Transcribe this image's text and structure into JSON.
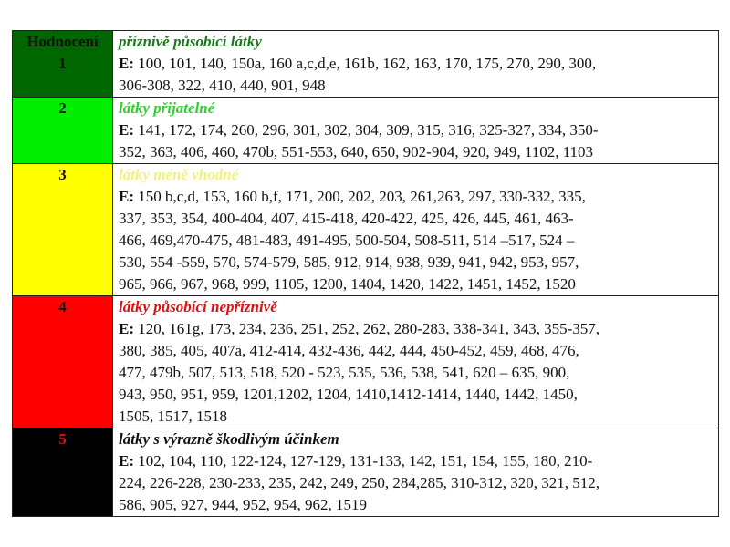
{
  "header_label": "Hodnocení",
  "e_prefix": "E:",
  "rows": [
    {
      "rank": "1",
      "title": "příznivě působící látky",
      "rank_bg": "#006600",
      "rank_color": "#111111",
      "title_color": "#1a7a1a",
      "lines": [
        " 100, 101, 140, 150a, 160 a,c,d,e, 161b, 162, 163, 170, 175, 270, 290, 300,",
        "306-308, 322, 410, 440, 901, 948"
      ]
    },
    {
      "rank": "2",
      "title": "látky přijatelné",
      "rank_bg": "#00ee00",
      "rank_color": "#111111",
      "title_color": "#33cc33",
      "lines": [
        " 141, 172, 174, 260, 296, 301, 302, 304, 309, 315,  316, 325-327, 334, 350-",
        "352, 363, 406, 460, 470b, 551-553, 640, 650, 902-904, 920, 949, 1102, 1103"
      ]
    },
    {
      "rank": "3",
      "title": "látky méně vhodné",
      "rank_bg": "#ffff00",
      "rank_color": "#111111",
      "title_color": "#f2f27a",
      "lines": [
        " 150 b,c,d, 153, 160 b,f, 171, 200,  202, 203, 261,263, 297, 330-332, 335,",
        "337, 353, 354, 400-404, 407,   415-418,  420-422, 425, 426, 445, 461, 463-",
        "466, 469,470-475,  481-483, 491-495, 500-504, 508-511, 514 –517, 524 –",
        "530,  554 -559, 570, 574-579, 585, 912, 914, 938, 939, 941, 942, 953, 957,",
        "965, 966, 967,  968, 999, 1105, 1200, 1404, 1420, 1422, 1451, 1452, 1520"
      ]
    },
    {
      "rank": "4",
      "title": "látky působící  nepříznivě",
      "rank_bg": "#ff0000",
      "rank_color": "#111111",
      "title_color": "#dd1111",
      "lines": [
        " 120, 161g, 173, 234, 236, 251, 252, 262, 280-283,  338-341, 343, 355-357,",
        "380, 385, 405, 407a, 412-414,  432-436, 442,  444, 450-452, 459, 468, 476,",
        "477, 479b, 507, 513, 518, 520 - 523, 535, 536, 538, 541,  620 – 635, 900,",
        "943, 950, 951, 959, 1201,1202, 1204, 1410,1412-1414, 1440, 1442, 1450,",
        "1505, 1517, 1518"
      ]
    },
    {
      "rank": "5",
      "title": "látky s výrazně škodlivým účinkem",
      "rank_bg": "#000000",
      "rank_color": "#dd1111",
      "title_color": "#111111",
      "lines": [
        " 102, 104, 110, 122-124, 127-129, 131-133, 142, 151, 154, 155, 180, 210-",
        "224, 226-228, 230-233, 235, 242, 249, 250, 284,285, 310-312, 320, 321, 512,",
        "586, 905, 927, 944, 952,  954, 962, 1519"
      ]
    }
  ]
}
